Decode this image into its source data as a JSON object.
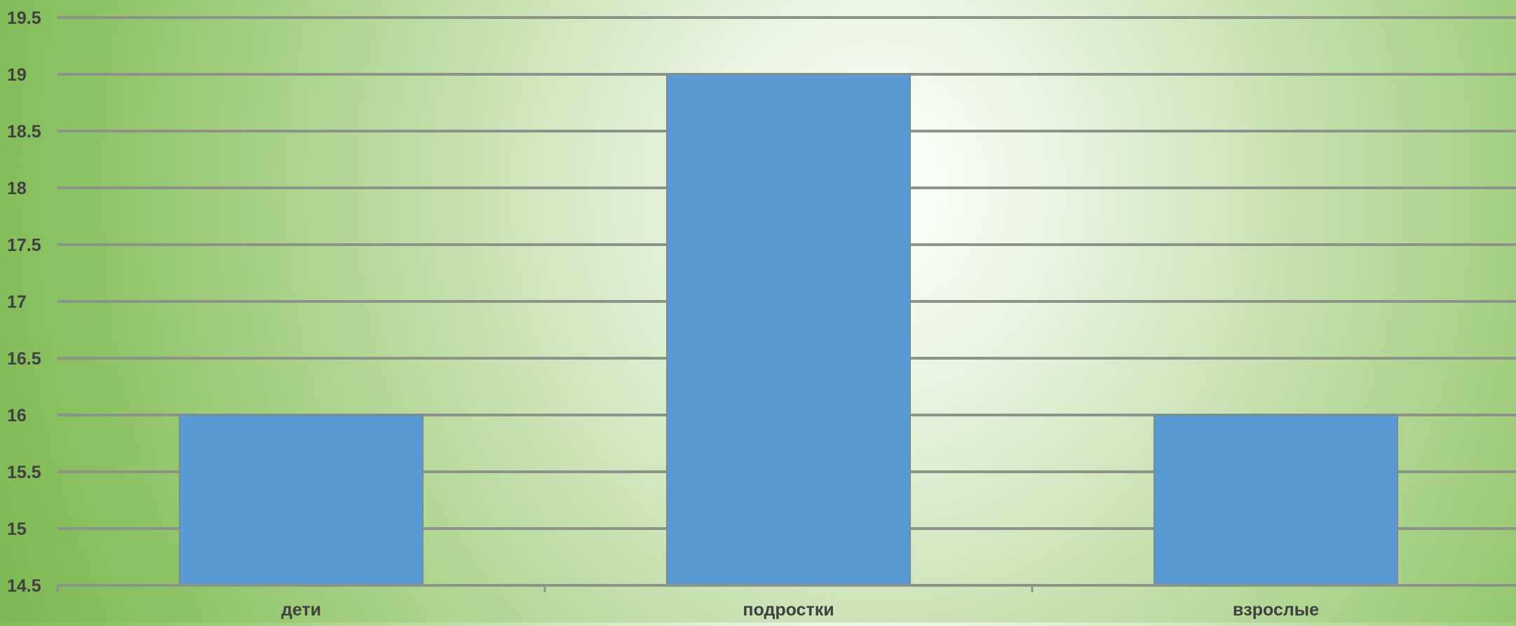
{
  "chart_data": {
    "type": "bar",
    "categories": [
      "дети",
      "подростки",
      "взрослые"
    ],
    "values": [
      16,
      19,
      16
    ],
    "ylim": [
      14.5,
      19.5
    ],
    "y_step": 0.5,
    "y_ticks": [
      "14.5",
      "15",
      "15.5",
      "16",
      "16.5",
      "17",
      "17.5",
      "18",
      "18.5",
      "19",
      "19.5"
    ],
    "title": "",
    "xlabel": "",
    "ylabel": "",
    "grid": true,
    "legend": "none",
    "colors": {
      "bar": "#5b9bd5",
      "bar_edge": "#7f8a8a",
      "grid": "#8c948a",
      "axis": "#8c948a",
      "text": "#404040"
    }
  }
}
